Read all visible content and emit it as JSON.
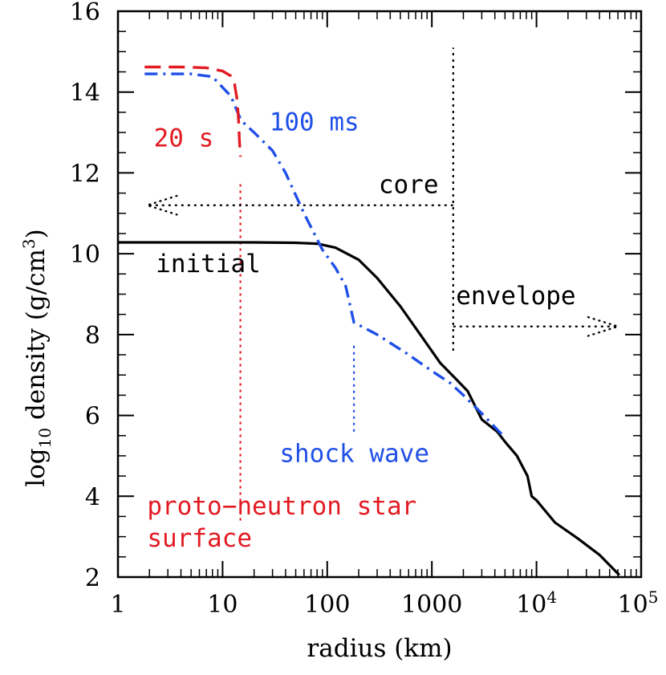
{
  "chart_data": {
    "type": "line",
    "xscale": "log",
    "xlim": [
      1,
      100000
    ],
    "ylim": [
      2,
      16
    ],
    "xlabel": "radius (km)",
    "ylabel": {
      "main": "log",
      "sub": "10",
      "rest": " density (g/cm",
      "sup": "3",
      "close": ")"
    },
    "x_ticks": [
      {
        "value": 1,
        "label": "1"
      },
      {
        "value": 10,
        "label": "10"
      },
      {
        "value": 100,
        "label": "100"
      },
      {
        "value": 1000,
        "label": "1000"
      },
      {
        "value": 10000,
        "base": "10",
        "exp": "4"
      },
      {
        "value": 100000,
        "base": "10",
        "exp": "5"
      }
    ],
    "y_ticks": [
      {
        "value": 2,
        "label": "2"
      },
      {
        "value": 4,
        "label": "4"
      },
      {
        "value": 6,
        "label": "6"
      },
      {
        "value": 8,
        "label": "8"
      },
      {
        "value": 10,
        "label": "10"
      },
      {
        "value": 12,
        "label": "12"
      },
      {
        "value": 14,
        "label": "14"
      },
      {
        "value": 16,
        "label": "16"
      }
    ],
    "series": [
      {
        "name": "initial",
        "color": "#000000",
        "style": "solid",
        "x": [
          1,
          2,
          5,
          10,
          20,
          50,
          80,
          120,
          200,
          300,
          500,
          800,
          1200,
          1700,
          2200,
          3000,
          4200,
          5000,
          6500,
          8200,
          9000,
          10000,
          15000,
          25000,
          40000,
          62000
        ],
        "y": [
          10.28,
          10.28,
          10.28,
          10.28,
          10.28,
          10.27,
          10.25,
          10.15,
          9.85,
          9.4,
          8.7,
          7.95,
          7.3,
          6.9,
          6.6,
          5.9,
          5.6,
          5.35,
          5.0,
          4.5,
          4.0,
          3.9,
          3.35,
          2.95,
          2.55,
          2.05
        ]
      },
      {
        "name": "100 ms",
        "color": "#1f4fe6",
        "style": "dashdot",
        "x": [
          1.8,
          5,
          8,
          12,
          15,
          20,
          30,
          40,
          60,
          90,
          120,
          150,
          180,
          300,
          600,
          1000,
          1500,
          2000,
          3000,
          5000
        ],
        "y": [
          14.45,
          14.45,
          14.38,
          13.9,
          13.3,
          13.0,
          12.55,
          12.0,
          11.0,
          10.1,
          9.65,
          9.2,
          8.3,
          8.0,
          7.5,
          7.1,
          6.8,
          6.5,
          6.05,
          5.45
        ]
      },
      {
        "name": "20 s",
        "color": "#e21b23",
        "style": "dashed",
        "x": [
          1.8,
          4,
          7,
          10,
          12,
          13,
          13.8,
          14.2,
          14.5,
          14.8
        ],
        "y": [
          14.62,
          14.62,
          14.6,
          14.52,
          14.4,
          14.2,
          13.8,
          13.3,
          12.8,
          12.4
        ]
      }
    ],
    "markers": [
      {
        "name": "core boundary",
        "color": "#000000",
        "x": 1600,
        "y_range": [
          7.6,
          15.1
        ]
      },
      {
        "name": "proto-neutron star radius",
        "color": "#e21b23",
        "x": 14.8,
        "y_range": [
          3.4,
          11.8
        ]
      },
      {
        "name": "shock radius",
        "color": "#1f4fe6",
        "x": 180,
        "y_range": [
          5.6,
          7.8
        ]
      }
    ],
    "arrows": [
      {
        "name": "core",
        "color": "#000000",
        "from_x": 1600,
        "to_x": 1.9,
        "y": 11.2
      },
      {
        "name": "envelope",
        "color": "#000000",
        "from_x": 1600,
        "to_x": 60000,
        "y": 8.2
      }
    ],
    "annotations": [
      {
        "id": "label-100ms",
        "text": "100 ms",
        "color": "#1f4fe6",
        "x": 28,
        "y": 13.05
      },
      {
        "id": "label-20s",
        "text": "20 s",
        "color": "#e21b23",
        "x": 2.2,
        "y": 12.65
      },
      {
        "id": "label-core",
        "text": "core",
        "color": "#000000",
        "x": 310,
        "y": 11.5
      },
      {
        "id": "label-initial",
        "text": "initial",
        "color": "#000000",
        "x": 2.3,
        "y": 9.55
      },
      {
        "id": "label-envelope",
        "text": "envelope",
        "color": "#000000",
        "x": 1700,
        "y": 8.75
      },
      {
        "id": "label-shock-wave",
        "text": "shock wave",
        "color": "#1f4fe6",
        "x": 35,
        "y": 4.85
      },
      {
        "id": "label-pns-line1",
        "text": "proto−neutron star",
        "color": "#e21b23",
        "x": 1.9,
        "y": 3.55
      },
      {
        "id": "label-pns-line2",
        "text": "surface",
        "color": "#e21b23",
        "x": 1.9,
        "y": 2.75
      }
    ]
  }
}
